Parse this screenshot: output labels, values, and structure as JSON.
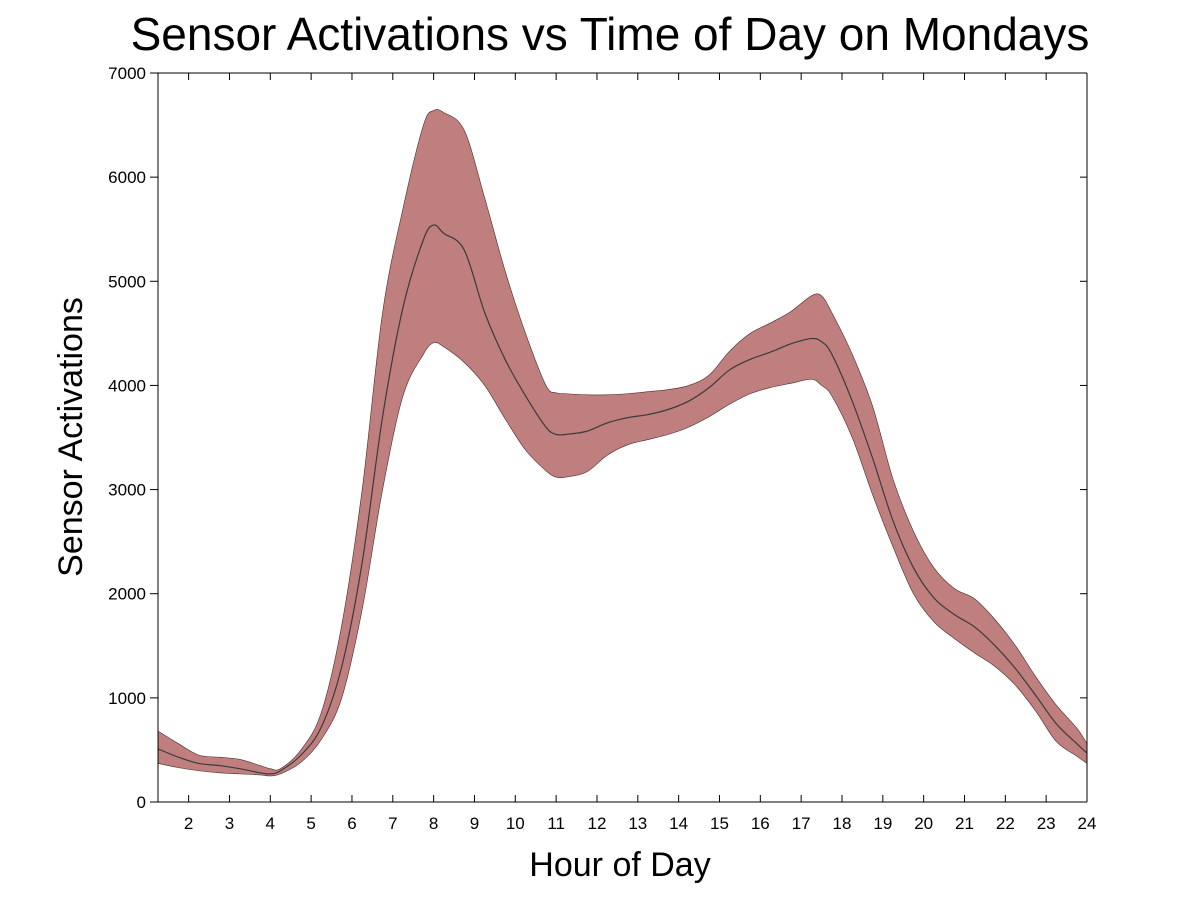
{
  "chart_data": {
    "type": "area",
    "title": "Sensor Activations vs Time of Day on Mondays",
    "xlabel": "Hour of Day",
    "ylabel": "Sensor Activations",
    "xlim": [
      1.25,
      24
    ],
    "ylim": [
      0,
      7000
    ],
    "x_ticks": [
      2,
      3,
      4,
      5,
      6,
      7,
      8,
      9,
      10,
      11,
      12,
      13,
      14,
      15,
      16,
      17,
      18,
      19,
      20,
      21,
      22,
      23,
      24
    ],
    "x_tick_labels": [
      "2",
      "3",
      "4",
      "5",
      "6",
      "7",
      "8",
      "9",
      "10",
      "11",
      "12",
      "13",
      "14",
      "15",
      "16",
      "17",
      "18",
      "19",
      "20",
      "21",
      "22",
      "23",
      "24"
    ],
    "y_ticks": [
      0,
      1000,
      2000,
      3000,
      4000,
      5000,
      6000,
      7000
    ],
    "y_tick_labels": [
      "0",
      "1000",
      "2000",
      "3000",
      "4000",
      "5000",
      "6000",
      "7000"
    ],
    "grid": false,
    "colors": {
      "band": "#bf7f7f",
      "mean": "#3a3a3a"
    },
    "x": [
      1.25,
      1.75,
      2.25,
      2.75,
      3.25,
      3.75,
      4.0,
      4.25,
      4.75,
      5.25,
      5.75,
      6.25,
      6.75,
      7.25,
      7.75,
      8.0,
      8.25,
      8.75,
      9.25,
      9.75,
      10.25,
      10.75,
      11.0,
      11.25,
      11.75,
      12.25,
      12.75,
      13.25,
      13.75,
      14.25,
      14.75,
      15.25,
      15.75,
      16.25,
      16.75,
      17.25,
      17.5,
      17.75,
      18.25,
      18.75,
      19.25,
      19.75,
      20.25,
      20.75,
      21.25,
      21.75,
      22.25,
      22.75,
      23.25,
      23.75,
      24.0
    ],
    "series": [
      {
        "values": [
          510,
          430,
          370,
          350,
          320,
          280,
          270,
          300,
          450,
          720,
          1300,
          2300,
          3700,
          4750,
          5400,
          5540,
          5460,
          5300,
          4700,
          4250,
          3900,
          3600,
          3530,
          3530,
          3560,
          3640,
          3690,
          3720,
          3770,
          3850,
          3980,
          4150,
          4250,
          4320,
          4400,
          4450,
          4420,
          4300,
          3850,
          3300,
          2700,
          2250,
          1960,
          1800,
          1680,
          1500,
          1280,
          1020,
          750,
          560,
          470
        ]
      }
    ],
    "band_upper": [
      680,
      560,
      450,
      430,
      410,
      350,
      320,
      320,
      500,
      860,
      1700,
      3000,
      4700,
      5700,
      6500,
      6640,
      6620,
      6450,
      5800,
      5100,
      4500,
      4000,
      3930,
      3920,
      3910,
      3910,
      3920,
      3940,
      3960,
      4000,
      4100,
      4330,
      4500,
      4600,
      4710,
      4860,
      4860,
      4700,
      4300,
      3800,
      3100,
      2600,
      2250,
      2050,
      1950,
      1750,
      1500,
      1200,
      930,
      710,
      560
    ],
    "band_lower": [
      370,
      330,
      300,
      280,
      270,
      260,
      250,
      270,
      380,
      600,
      1000,
      1850,
      3000,
      3900,
      4300,
      4410,
      4370,
      4220,
      4000,
      3680,
      3380,
      3180,
      3120,
      3120,
      3170,
      3330,
      3430,
      3480,
      3530,
      3600,
      3700,
      3820,
      3920,
      3980,
      4020,
      4060,
      4000,
      3900,
      3500,
      2950,
      2450,
      2000,
      1730,
      1570,
      1430,
      1300,
      1120,
      870,
      580,
      440,
      370
    ]
  }
}
